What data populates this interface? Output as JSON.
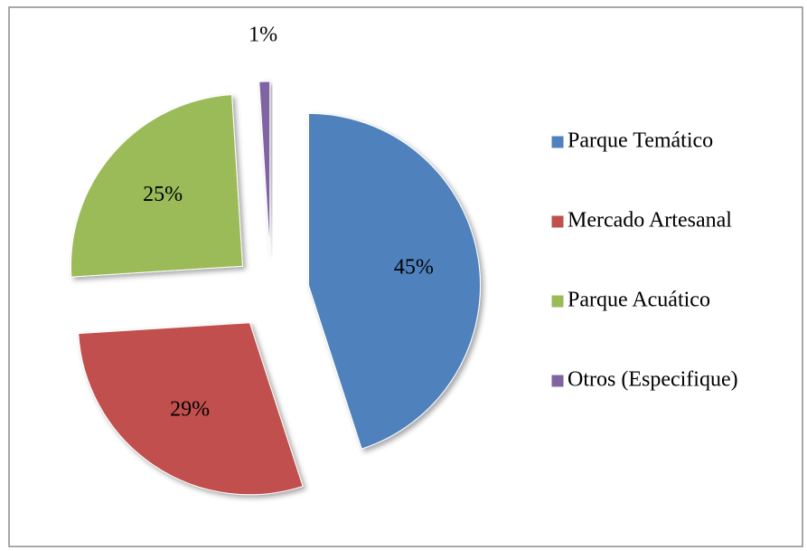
{
  "chart_data": {
    "type": "pie",
    "categories": [
      "Parque Temático",
      "Mercado Artesanal",
      "Parque Acuático",
      "Otros (Especifique)"
    ],
    "values": [
      45,
      29,
      25,
      1
    ],
    "value_labels": [
      "45%",
      "29%",
      "25%",
      "1%"
    ],
    "colors": [
      "#4f81bd",
      "#c0504d",
      "#9bbb59",
      "#8064a2"
    ],
    "legend": "right"
  }
}
